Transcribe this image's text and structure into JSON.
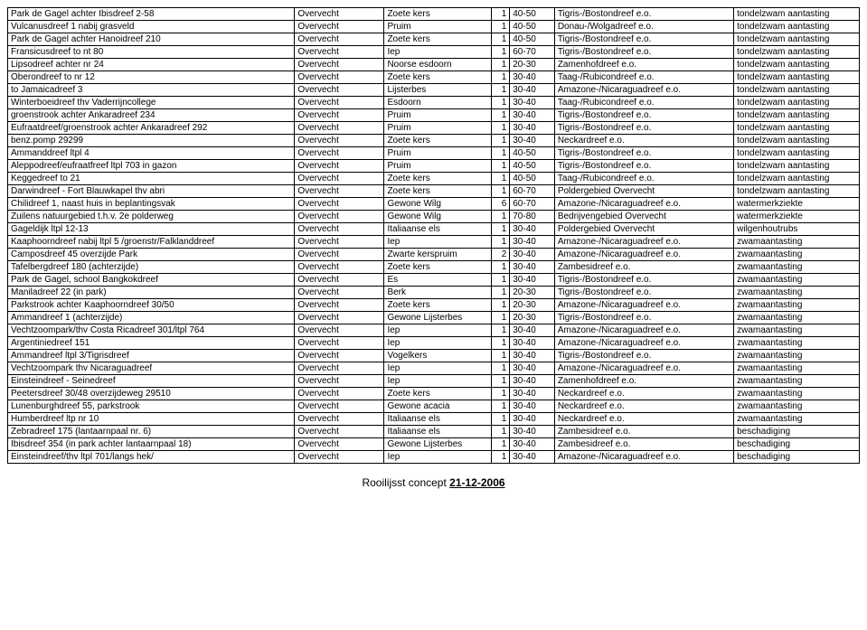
{
  "footer": {
    "prefix": "Rooilijsst concept ",
    "date": "21-12-2006"
  },
  "table": {
    "rows": [
      [
        "Park de Gagel achter Ibisdreef 2-58",
        "Overvecht",
        "Zoete kers",
        "1",
        "40-50",
        "Tigris-/Bostondreef e.o.",
        "tondelzwam aantasting"
      ],
      [
        "Vulcanusdreef 1 nabij grasveld",
        "Overvecht",
        "Pruim",
        "1",
        "40-50",
        "Donau-/Wolgadreef e.o.",
        "tondelzwam aantasting"
      ],
      [
        "Park de Gagel achter Hanoidreef 210",
        "Overvecht",
        "Zoete kers",
        "1",
        "40-50",
        "Tigris-/Bostondreef e.o.",
        "tondelzwam aantasting"
      ],
      [
        "Fransicusdreef to nt 80",
        "Overvecht",
        "Iep",
        "1",
        "60-70",
        "Tigris-/Bostondreef e.o.",
        "tondelzwam aantasting"
      ],
      [
        "Lipsodreef achter nr 24",
        "Overvecht",
        "Noorse esdoorn",
        "1",
        "20-30",
        "Zamenhofdreef e.o.",
        "tondelzwam aantasting"
      ],
      [
        "Oberondreef to nr 12",
        "Overvecht",
        "Zoete kers",
        "1",
        "30-40",
        "Taag-/Rubicondreef e.o.",
        "tondelzwam aantasting"
      ],
      [
        "to Jamaicadreef 3",
        "Overvecht",
        "Lijsterbes",
        "1",
        "30-40",
        "Amazone-/Nicaraguadreef e.o.",
        "tondelzwam aantasting"
      ],
      [
        "Winterboeidreef thv Vaderrijncollege",
        "Overvecht",
        "Esdoorn",
        "1",
        "30-40",
        "Taag-/Rubicondreef e.o.",
        "tondelzwam aantasting"
      ],
      [
        "groenstrook achter Ankaradreef 234",
        "Overvecht",
        "Pruim",
        "1",
        "30-40",
        "Tigris-/Bostondreef e.o.",
        "tondelzwam aantasting"
      ],
      [
        "Eufraatdreef/groenstrook achter Ankaradreef 292",
        "Overvecht",
        "Pruim",
        "1",
        "30-40",
        "Tigris-/Bostondreef e.o.",
        "tondelzwam aantasting"
      ],
      [
        "benz.pomp 29299",
        "Overvecht",
        "Zoete kers",
        "1",
        "30-40",
        "Neckardreef e.o.",
        "tondelzwam aantasting"
      ],
      [
        "Ammanddreef ltpl 4",
        "Overvecht",
        "Pruim",
        "1",
        "40-50",
        "Tigris-/Bostondreef e.o.",
        "tondelzwam aantasting"
      ],
      [
        "Aleppodreef/eufraatfreef ltpl 703 in gazon",
        "Overvecht",
        "Pruim",
        "1",
        "40-50",
        "Tigris-/Bostondreef e.o.",
        "tondelzwam aantasting"
      ],
      [
        "Keggedreef to 21",
        "Overvecht",
        "Zoete kers",
        "1",
        "40-50",
        "Taag-/Rubicondreef e.o.",
        "tondelzwam aantasting"
      ],
      [
        "Darwindreef - Fort Blauwkapel thv abri",
        "Overvecht",
        "Zoete kers",
        "1",
        "60-70",
        "Poldergebied Overvecht",
        "tondelzwam aantasting"
      ],
      [
        "Chilidreef 1, naast huis in beplantingsvak",
        "Overvecht",
        "Gewone Wilg",
        "6",
        "60-70",
        "Amazone-/Nicaraguadreef e.o.",
        "watermerkziekte"
      ],
      [
        "Zuilens natuurgebied t.h.v. 2e polderweg",
        "Overvecht",
        "Gewone Wilg",
        "1",
        "70-80",
        "Bedrijvengebied Overvecht",
        "watermerkziekte"
      ],
      [
        "Gageldijk ltpl 12-13",
        "Overvecht",
        "Italiaanse els",
        "1",
        "30-40",
        "Poldergebied Overvecht",
        "wilgenhoutrubs"
      ],
      [
        "Kaaphoorndreef nabij ltpl 5 /groenstr/Falklanddreef",
        "Overvecht",
        "Iep",
        "1",
        "30-40",
        "Amazone-/Nicaraguadreef e.o.",
        "zwamaantasting"
      ],
      [
        "Camposdreef 45 overzijde Park",
        "Overvecht",
        "Zwarte kerspruim",
        "2",
        "30-40",
        "Amazone-/Nicaraguadreef e.o.",
        "zwamaantasting"
      ],
      [
        "Tafelbergdreef 180 (achterzijde)",
        "Overvecht",
        "Zoete kers",
        "1",
        "30-40",
        "Zambesidreef e.o.",
        "zwamaantasting"
      ],
      [
        "Park de Gagel, school Bangkokdreef",
        "Overvecht",
        "Es",
        "1",
        "30-40",
        "Tigris-/Bostondreef e.o.",
        "zwamaantasting"
      ],
      [
        "Maniladreef 22 (in park)",
        "Overvecht",
        "Berk",
        "1",
        "20-30",
        "Tigris-/Bostondreef e.o.",
        "zwamaantasting"
      ],
      [
        "Parkstrook achter Kaaphoorndreef 30/50",
        "Overvecht",
        "Zoete kers",
        "1",
        "20-30",
        "Amazone-/Nicaraguadreef e.o.",
        "zwamaantasting"
      ],
      [
        "Ammandreef 1 (achterzijde)",
        "Overvecht",
        "Gewone Lijsterbes",
        "1",
        "20-30",
        "Tigris-/Bostondreef e.o.",
        "zwamaantasting"
      ],
      [
        "Vechtzoompark/thv Costa Ricadreef 301/ltpl 764",
        "Overvecht",
        "Iep",
        "1",
        "30-40",
        "Amazone-/Nicaraguadreef e.o.",
        "zwamaantasting"
      ],
      [
        "Argentiniedreef 151",
        "Overvecht",
        "Iep",
        "1",
        "30-40",
        "Amazone-/Nicaraguadreef e.o.",
        "zwamaantasting"
      ],
      [
        "Ammandreef ltpl 3/Tigrisdreef",
        "Overvecht",
        "Vogelkers",
        "1",
        "30-40",
        "Tigris-/Bostondreef e.o.",
        "zwamaantasting"
      ],
      [
        "Vechtzoompark thv Nicaraguadreef",
        "Overvecht",
        "Iep",
        "1",
        "30-40",
        "Amazone-/Nicaraguadreef e.o.",
        "zwamaantasting"
      ],
      [
        "Einsteindreef - Seinedreef",
        "Overvecht",
        "Iep",
        "1",
        "30-40",
        "Zamenhofdreef e.o.",
        "zwamaantasting"
      ],
      [
        "Peetersdreef 30/48 overzijdeweg 29510",
        "Overvecht",
        "Zoete kers",
        "1",
        "30-40",
        "Neckardreef e.o.",
        "zwamaantasting"
      ],
      [
        "Lunenburghdreef 55, parkstrook",
        "Overvecht",
        "Gewone acacia",
        "1",
        "30-40",
        "Neckardreef e.o.",
        "zwamaantasting"
      ],
      [
        "Humberdreef ltp nr 10",
        "Overvecht",
        "Italiaanse els",
        "1",
        "30-40",
        "Neckardreef e.o.",
        "zwamaantasting"
      ],
      [
        "Zebradreef 175 (lantaarnpaal nr. 6)",
        "Overvecht",
        "Italiaanse els",
        "1",
        "30-40",
        "Zambesidreef e.o.",
        "beschadiging"
      ],
      [
        "Ibisdreef 354 (in park achter lantaarnpaal 18)",
        "Overvecht",
        "Gewone Lijsterbes",
        "1",
        "30-40",
        "Zambesidreef e.o.",
        "beschadiging"
      ],
      [
        "Einsteindreef/thv ltpl 701/langs hek/",
        "Overvecht",
        "Iep",
        "1",
        "30-40",
        "Amazone-/Nicaraguadreef e.o.",
        "beschadiging"
      ]
    ]
  }
}
